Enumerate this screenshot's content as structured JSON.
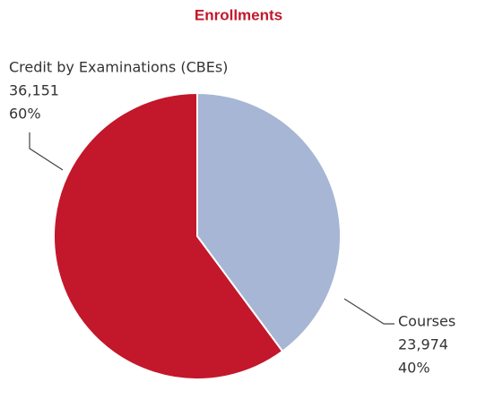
{
  "chart_data": {
    "type": "pie",
    "title": "Enrollments",
    "categories": [
      "Courses",
      "Credit by Examinations (CBEs)"
    ],
    "values": [
      23974,
      36151
    ],
    "value_labels": [
      "23,974",
      "36,151"
    ],
    "percentages": [
      40,
      60
    ],
    "percentage_labels": [
      "40%",
      "60%"
    ],
    "colors": [
      "#a6b6d4",
      "#c3172b"
    ]
  }
}
